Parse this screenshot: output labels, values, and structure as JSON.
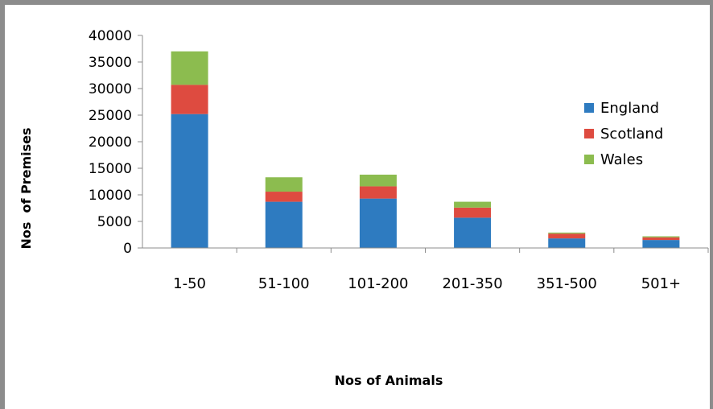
{
  "chart_data": {
    "type": "bar",
    "stacked": true,
    "categories": [
      "1-50",
      "51-100",
      "101-200",
      "201-350",
      "351-500",
      "501+"
    ],
    "series": [
      {
        "name": "England",
        "color": "#2e7bc0",
        "values": [
          25200,
          8700,
          9300,
          5700,
          1800,
          1500
        ]
      },
      {
        "name": "Scotland",
        "color": "#de4b40",
        "values": [
          5500,
          1900,
          2300,
          1900,
          900,
          500
        ]
      },
      {
        "name": "Wales",
        "color": "#8cbc4f",
        "values": [
          6300,
          2700,
          2200,
          1100,
          200,
          200
        ]
      }
    ],
    "xlabel": "Nos of Animals",
    "ylabel": "Nos  of Premises",
    "ylim": [
      0,
      40000
    ],
    "yticks": [
      "0",
      "5000",
      "10000",
      "15000",
      "20000",
      "25000",
      "30000",
      "35000",
      "40000"
    ],
    "grid": false,
    "legend_position": "right"
  }
}
